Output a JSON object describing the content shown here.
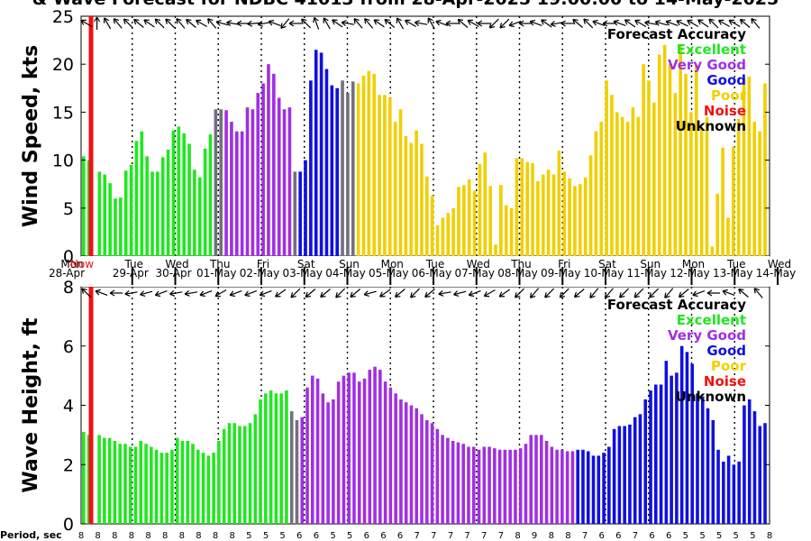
{
  "title": "& Wave Forecast for NDBC 41013 from 28-Apr-2025 19:00:00 to 14-May-2025",
  "colors": {
    "excellent": "#22e622",
    "very_good": "#a030e0",
    "good": "#1010dd",
    "poor": "#f0d000",
    "noise": "#ee1111",
    "unknown": "#707080",
    "now_line": "#ee1111"
  },
  "legend": {
    "title": "Forecast Accuracy",
    "entries": [
      {
        "label": "Excellent",
        "cls": "excellent"
      },
      {
        "label": "Very Good",
        "cls": "very_good"
      },
      {
        "label": "Good",
        "cls": "good"
      },
      {
        "label": "Poor",
        "cls": "poor"
      },
      {
        "label": "Noise",
        "cls": "noise"
      },
      {
        "label": "Unknown",
        "cls": "unknown"
      }
    ]
  },
  "now_label": "Now",
  "day_labels": [
    {
      "day": "Mon",
      "date": "28-Apr"
    },
    {
      "day": "Tue",
      "date": "29-Apr"
    },
    {
      "day": "Wed",
      "date": "30-Apr"
    },
    {
      "day": "Thu",
      "date": "01-May"
    },
    {
      "day": "Fri",
      "date": "02-May"
    },
    {
      "day": "Sat",
      "date": "03-May"
    },
    {
      "day": "Sun",
      "date": "04-May"
    },
    {
      "day": "Mon",
      "date": "05-May"
    },
    {
      "day": "Tue",
      "date": "06-May"
    },
    {
      "day": "Wed",
      "date": "07-May"
    },
    {
      "day": "Thu",
      "date": "08-May"
    },
    {
      "day": "Fri",
      "date": "09-May"
    },
    {
      "day": "Sat",
      "date": "10-May"
    },
    {
      "day": "Sun",
      "date": "11-May"
    },
    {
      "day": "Mon",
      "date": "12-May"
    },
    {
      "day": "Tue",
      "date": "13-May"
    },
    {
      "day": "Wed",
      "date": "14-May"
    }
  ],
  "period_label": "Period, sec",
  "chart_data": [
    {
      "type": "bar",
      "ylabel": "Wind Speed, kts",
      "ylim": [
        0,
        25
      ],
      "yticks": [
        0,
        5,
        10,
        15,
        20,
        25
      ],
      "x_unit": "3-hour steps from 28-Apr 19:00",
      "categories_accuracy": "EEEEEEEEEEEEEEEEEEEEEEEEEUUVVVVVVVVVVVVVUBBBBBBBBUUUPPPPPPPPPPPPPPPPPPPPPPPPPPPPPPPPPPPPPPPPPPPPPPPPPPPPPPPPPPPPPPPPPPPPPPPPPP",
      "values": [
        10.4,
        10,
        0,
        8.8,
        8.5,
        7.6,
        6,
        6.1,
        8.9,
        9.5,
        12,
        13,
        10.4,
        8.8,
        8.8,
        10.3,
        11.1,
        13.1,
        13.5,
        12.8,
        11.7,
        9,
        8.2,
        11.2,
        12.7,
        15.3,
        15.3,
        15.2,
        14,
        13,
        13,
        15.5,
        15.3,
        17,
        18,
        20,
        19,
        16.5,
        15.3,
        15.5,
        8.8,
        8.8,
        10,
        18.3,
        21.5,
        21.2,
        19.5,
        17.8,
        17.5,
        18.3,
        17,
        18.2,
        18,
        18.8,
        19.3,
        19,
        16.8,
        16.8,
        16.5,
        14,
        15.3,
        12.5,
        11.8,
        13.1,
        11.7,
        8.3,
        6.3,
        3.2,
        4,
        4.5,
        5,
        7.2,
        7.4,
        8,
        6.8,
        9.6,
        10.8,
        7.3,
        1.2,
        7.4,
        5.3,
        5,
        10.2,
        10.2,
        9.8,
        9.7,
        7.8,
        8.5,
        9,
        8.5,
        11,
        8.8,
        8.1,
        7.3,
        7.5,
        8.2,
        10.5,
        13,
        14,
        18.3,
        16.8,
        15,
        14.5,
        14,
        15.5,
        14.5,
        20,
        18.3,
        16,
        21,
        22,
        20,
        17,
        22,
        19,
        15,
        20,
        13.3,
        14.5,
        1,
        6.5,
        11.3,
        4,
        11.4,
        14.3,
        18.5,
        18.7,
        14,
        13,
        18
      ],
      "direction_arrows_deg": [
        210,
        270,
        270,
        250,
        240,
        240,
        230,
        225,
        225,
        225,
        220,
        210,
        215,
        225,
        225,
        225,
        225,
        225,
        230,
        230,
        220,
        210,
        210,
        210,
        230,
        200,
        195,
        190,
        190,
        185,
        180,
        175,
        175,
        170,
        170,
        165,
        200,
        135,
        130,
        150,
        180,
        210,
        225,
        255,
        250,
        240,
        240,
        230,
        215,
        200,
        190,
        225,
        230,
        240,
        230,
        225,
        215,
        210,
        220,
        230,
        240,
        215,
        210,
        200,
        190,
        180,
        240,
        240,
        200,
        180,
        180,
        210,
        220,
        210,
        210,
        210,
        180,
        150,
        135,
        135,
        135,
        150,
        160,
        170,
        180,
        190,
        200,
        210,
        215,
        190,
        170,
        160,
        180,
        210,
        220,
        220,
        225,
        230,
        200,
        195,
        180,
        180,
        200,
        210,
        215,
        210,
        210,
        200,
        190,
        190,
        195,
        200,
        200,
        200,
        205,
        210,
        210,
        210,
        215,
        220,
        225,
        230,
        210,
        200,
        210,
        215,
        220,
        225,
        230,
        230
      ]
    },
    {
      "type": "bar",
      "ylabel": "Wave Height, ft",
      "ylim": [
        0,
        8
      ],
      "yticks": [
        0,
        2,
        4,
        6,
        8
      ],
      "x_unit": "3-hour steps from 28-Apr 19:00",
      "categories_accuracy": "EEEEEEEEEEEEEEEEEEEEEEEEEEEEEEEEEEEEEEEEUUVVVVVVVVVVVVVVVVVVVVVVVVVVVVVVVVVVVVVVVVVVVVVVVVVVVVVBBBBBBBBBBBBBBBBBBBBBBBBBBBBBBBBBBBBB",
      "values": [
        3.1,
        3,
        0,
        3,
        2.9,
        2.9,
        2.8,
        2.7,
        2.7,
        2.6,
        2.6,
        2.8,
        2.7,
        2.6,
        2.5,
        2.4,
        2.4,
        2.5,
        2.9,
        2.8,
        2.8,
        2.7,
        2.5,
        2.4,
        2.3,
        2.4,
        2.8,
        3.2,
        3.4,
        3.4,
        3.3,
        3.3,
        3.4,
        3.7,
        4.2,
        4.4,
        4.5,
        4.4,
        4.4,
        4.5,
        3.8,
        3.5,
        3.6,
        4.6,
        5,
        4.9,
        4.4,
        4.1,
        4.2,
        4.8,
        5,
        5.1,
        5.1,
        4.8,
        4.9,
        5.2,
        5.3,
        5.2,
        4.8,
        4.6,
        4.4,
        4.2,
        4.1,
        4,
        3.9,
        3.7,
        3.5,
        3.4,
        3.2,
        3,
        2.9,
        2.8,
        2.75,
        2.7,
        2.6,
        2.6,
        2.5,
        2.6,
        2.6,
        2.55,
        2.5,
        2.5,
        2.5,
        2.5,
        2.55,
        2.7,
        3,
        3,
        3,
        2.8,
        2.6,
        2.5,
        2.5,
        2.45,
        2.45,
        2.5,
        2.5,
        2.45,
        2.3,
        2.3,
        2.4,
        2.6,
        3.2,
        3.3,
        3.3,
        3.35,
        3.6,
        3.7,
        4.2,
        4.5,
        4.7,
        4.7,
        5.5,
        5,
        5.1,
        6,
        5.8,
        5.4,
        4.4,
        4.3,
        3.9,
        3.5,
        2.5,
        2.1,
        2.3,
        2,
        2.1,
        4,
        4.2,
        3.8,
        3.3,
        3.4
      ],
      "period_sec": [
        8,
        8,
        8,
        8,
        8,
        8,
        8,
        8,
        8,
        8,
        8,
        8,
        8,
        8,
        8,
        8,
        8,
        8,
        8,
        5,
        5,
        5,
        5,
        5,
        5,
        6,
        6,
        6,
        6,
        5,
        5,
        5,
        5,
        5,
        6,
        6,
        6,
        6,
        6,
        6,
        7,
        7,
        7,
        7,
        7,
        7,
        7,
        7,
        7,
        7,
        7,
        7,
        8,
        9,
        9,
        9,
        8,
        8,
        8,
        8,
        7,
        7,
        6,
        6,
        6,
        6,
        7,
        7,
        6,
        6,
        6,
        6,
        5,
        5,
        5,
        5,
        5,
        5,
        5,
        5,
        5,
        5,
        8
      ],
      "direction_arrows_deg": [
        225,
        225,
        200,
        190,
        180,
        175,
        170,
        165,
        165,
        160,
        160,
        165,
        170,
        170,
        170,
        165,
        160,
        155,
        150,
        150,
        160,
        160,
        160,
        165,
        160,
        150,
        145,
        140,
        135,
        135,
        140,
        145,
        140,
        135,
        135,
        130,
        140,
        160,
        165,
        155,
        145,
        145,
        140,
        135,
        135,
        135,
        140,
        160,
        170,
        170,
        165,
        160,
        160,
        155,
        150,
        150,
        145,
        140,
        135,
        130,
        130,
        130,
        135,
        135,
        135,
        140,
        140,
        135,
        130,
        130,
        130,
        135,
        135,
        140,
        135,
        135,
        135,
        130,
        130,
        135,
        140,
        150,
        160,
        170,
        180,
        190,
        200,
        210,
        220,
        225,
        230
      ]
    }
  ]
}
